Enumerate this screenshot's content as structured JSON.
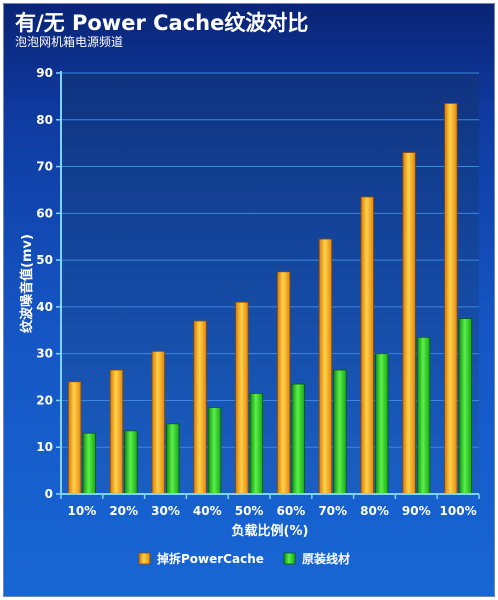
{
  "header": {
    "title": "有/无 Power Cache纹波对比",
    "subtitle": "泡泡网机箱电源频道"
  },
  "colors": {
    "series1": "#f5a623",
    "series2": "#22c41e",
    "grid": "#3f86e0"
  },
  "chart_data": {
    "type": "bar",
    "title": "有/无 Power Cache纹波对比",
    "subtitle": "泡泡网机箱电源频道",
    "xlabel": "负载比例(%)",
    "ylabel": "纹波噪音值(mv)",
    "ylim": [
      0,
      90
    ],
    "yticks": [
      0,
      10,
      20,
      30,
      40,
      50,
      60,
      70,
      80,
      90
    ],
    "grid": true,
    "legend_position": "bottom",
    "categories": [
      "10%",
      "20%",
      "30%",
      "40%",
      "50%",
      "60%",
      "70%",
      "80%",
      "90%",
      "100%"
    ],
    "series": [
      {
        "name": "掉拆PowerCache",
        "values": [
          24,
          26.5,
          30.5,
          37,
          41,
          47.5,
          54.5,
          63.5,
          73,
          83.5
        ]
      },
      {
        "name": "原装线材",
        "values": [
          13,
          13.5,
          15,
          18.5,
          21.5,
          23.5,
          26.5,
          30,
          33.5,
          37.5
        ]
      }
    ]
  }
}
